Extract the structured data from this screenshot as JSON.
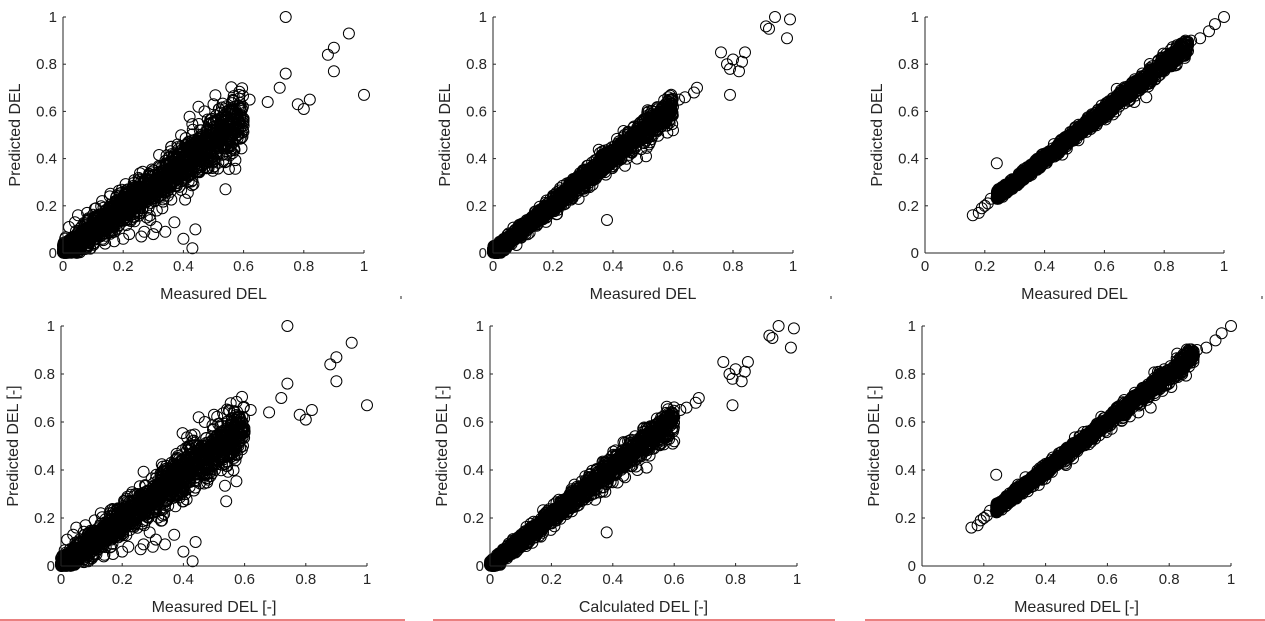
{
  "figure": {
    "background": "#ffffff",
    "marker_color": "#000000",
    "axis_color": "#262626",
    "underline_color": "#d40000"
  },
  "chart_data": [
    {
      "id": "top-left",
      "type": "scatter",
      "marker": "circle",
      "xlabel": "Measured DEL",
      "ylabel": "Predicted DEL",
      "xlim": [
        0,
        1
      ],
      "ylim": [
        0,
        1
      ],
      "xticks": [
        0,
        0.2,
        0.4,
        0.6,
        0.8,
        1
      ],
      "yticks": [
        0,
        0.2,
        0.4,
        0.6,
        0.8,
        1
      ],
      "xtick_labels": [
        "0",
        "0.2",
        "0.4",
        "0.6",
        "0.8",
        "1"
      ],
      "ytick_labels": [
        "0",
        "0.2",
        "0.4",
        "0.6",
        "0.8",
        "1"
      ],
      "grid": false,
      "legend": "none",
      "cloud": {
        "x_range": [
          0,
          0.6
        ],
        "slope": 0.95,
        "spread": 0.05,
        "approx_points": 1800
      },
      "points": [
        [
          0.74,
          1.0
        ],
        [
          0.95,
          0.93
        ],
        [
          0.9,
          0.87
        ],
        [
          0.88,
          0.84
        ],
        [
          0.9,
          0.77
        ],
        [
          1.0,
          0.67
        ],
        [
          0.74,
          0.76
        ],
        [
          0.82,
          0.65
        ],
        [
          0.8,
          0.61
        ],
        [
          0.78,
          0.63
        ],
        [
          0.72,
          0.7
        ],
        [
          0.68,
          0.64
        ],
        [
          0.62,
          0.65
        ],
        [
          0.54,
          0.27
        ],
        [
          0.56,
          0.6
        ],
        [
          0.6,
          0.56
        ],
        [
          0.52,
          0.52
        ],
        [
          0.44,
          0.1
        ],
        [
          0.43,
          0.02
        ],
        [
          0.4,
          0.06
        ],
        [
          0.37,
          0.13
        ],
        [
          0.34,
          0.09
        ],
        [
          0.33,
          0.19
        ],
        [
          0.31,
          0.11
        ],
        [
          0.3,
          0.08
        ],
        [
          0.29,
          0.14
        ],
        [
          0.27,
          0.09
        ],
        [
          0.26,
          0.07
        ],
        [
          0.22,
          0.08
        ],
        [
          0.2,
          0.06
        ],
        [
          0.17,
          0.05
        ],
        [
          0.14,
          0.04
        ],
        [
          0.1,
          0.04
        ],
        [
          0.09,
          0.02
        ],
        [
          0.13,
          0.22
        ],
        [
          0.11,
          0.19
        ],
        [
          0.08,
          0.17
        ],
        [
          0.05,
          0.16
        ],
        [
          0.04,
          0.13
        ],
        [
          0.02,
          0.11
        ],
        [
          0.25,
          0.3
        ],
        [
          0.3,
          0.33
        ],
        [
          0.38,
          0.42
        ],
        [
          0.42,
          0.45
        ],
        [
          0.46,
          0.5
        ],
        [
          0.48,
          0.36
        ],
        [
          0.5,
          0.43
        ],
        [
          0.58,
          0.5
        ],
        [
          0.45,
          0.62
        ],
        [
          0.47,
          0.6
        ],
        [
          0.5,
          0.63
        ]
      ]
    },
    {
      "id": "top-middle",
      "type": "scatter",
      "marker": "circle",
      "xlabel": "Measured DEL",
      "ylabel": "Predicted DEL",
      "xlim": [
        0,
        1
      ],
      "ylim": [
        0,
        1
      ],
      "xticks": [
        0,
        0.2,
        0.4,
        0.6,
        0.8,
        1
      ],
      "yticks": [
        0,
        0.2,
        0.4,
        0.6,
        0.8,
        1
      ],
      "xtick_labels": [
        "0",
        "0.2",
        "0.4",
        "0.6",
        "0.8",
        "1"
      ],
      "ytick_labels": [
        "0",
        "0.2",
        "0.4",
        "0.6",
        "0.8",
        "1"
      ],
      "grid": false,
      "legend": "none",
      "cloud": {
        "x_range": [
          0,
          0.6
        ],
        "slope": 1.03,
        "spread": 0.025,
        "approx_points": 1600
      },
      "points": [
        [
          0.94,
          1.0
        ],
        [
          0.99,
          0.99
        ],
        [
          0.91,
          0.96
        ],
        [
          0.92,
          0.95
        ],
        [
          0.98,
          0.91
        ],
        [
          0.76,
          0.85
        ],
        [
          0.84,
          0.85
        ],
        [
          0.8,
          0.82
        ],
        [
          0.78,
          0.8
        ],
        [
          0.83,
          0.81
        ],
        [
          0.79,
          0.78
        ],
        [
          0.82,
          0.77
        ],
        [
          0.79,
          0.67
        ],
        [
          0.68,
          0.7
        ],
        [
          0.67,
          0.68
        ],
        [
          0.64,
          0.66
        ],
        [
          0.62,
          0.65
        ],
        [
          0.6,
          0.62
        ],
        [
          0.38,
          0.14
        ],
        [
          0.52,
          0.46
        ],
        [
          0.51,
          0.41
        ],
        [
          0.48,
          0.4
        ],
        [
          0.44,
          0.37
        ],
        [
          0.6,
          0.52
        ],
        [
          0.58,
          0.54
        ]
      ]
    },
    {
      "id": "top-right",
      "type": "scatter",
      "marker": "circle",
      "xlabel": "Measured DEL",
      "ylabel": "Predicted DEL",
      "xlim": [
        0,
        1
      ],
      "ylim": [
        0,
        1
      ],
      "xticks": [
        0,
        0.2,
        0.4,
        0.6,
        0.8,
        1
      ],
      "yticks": [
        0,
        0.2,
        0.4,
        0.6,
        0.8,
        1
      ],
      "xtick_labels": [
        "0",
        "0.2",
        "0.4",
        "0.6",
        "0.8",
        "1"
      ],
      "ytick_labels": [
        "0",
        "0.2",
        "0.4",
        "0.6",
        "0.8",
        "1"
      ],
      "grid": false,
      "legend": "none",
      "cloud": {
        "x_range": [
          0.24,
          0.88
        ],
        "slope": 1.0,
        "spread": 0.012,
        "approx_points": 1500
      },
      "points": [
        [
          1.0,
          1.0
        ],
        [
          0.97,
          0.97
        ],
        [
          0.95,
          0.94
        ],
        [
          0.92,
          0.91
        ],
        [
          0.89,
          0.9
        ],
        [
          0.88,
          0.88
        ],
        [
          0.85,
          0.85
        ],
        [
          0.84,
          0.82
        ],
        [
          0.81,
          0.79
        ],
        [
          0.78,
          0.75
        ],
        [
          0.16,
          0.16
        ],
        [
          0.18,
          0.17
        ],
        [
          0.19,
          0.19
        ],
        [
          0.2,
          0.2
        ],
        [
          0.21,
          0.21
        ],
        [
          0.24,
          0.38
        ],
        [
          0.22,
          0.23
        ],
        [
          0.74,
          0.66
        ],
        [
          0.7,
          0.64
        ]
      ]
    },
    {
      "id": "bottom-left",
      "type": "scatter",
      "marker": "circle",
      "xlabel": "Measured DEL [-]",
      "ylabel": "Predicted DEL [-]",
      "xlim": [
        0,
        1
      ],
      "ylim": [
        0,
        1
      ],
      "xticks": [
        0,
        0.2,
        0.4,
        0.6,
        0.8,
        1
      ],
      "yticks": [
        0,
        0.2,
        0.4,
        0.6,
        0.8,
        1
      ],
      "xtick_labels": [
        "0",
        "0.2",
        "0.4",
        "0.6",
        "0.8",
        "1"
      ],
      "ytick_labels": [
        "0",
        "0.2",
        "0.4",
        "0.6",
        "0.8",
        "1"
      ],
      "grid": false,
      "legend": "none",
      "cloud": {
        "x_range": [
          0,
          0.6
        ],
        "slope": 0.95,
        "spread": 0.05,
        "approx_points": 1800
      },
      "points": [
        [
          0.74,
          1.0
        ],
        [
          0.95,
          0.93
        ],
        [
          0.9,
          0.87
        ],
        [
          0.88,
          0.84
        ],
        [
          0.9,
          0.77
        ],
        [
          1.0,
          0.67
        ],
        [
          0.74,
          0.76
        ],
        [
          0.82,
          0.65
        ],
        [
          0.8,
          0.61
        ],
        [
          0.78,
          0.63
        ],
        [
          0.72,
          0.7
        ],
        [
          0.68,
          0.64
        ],
        [
          0.62,
          0.65
        ],
        [
          0.54,
          0.27
        ],
        [
          0.56,
          0.6
        ],
        [
          0.6,
          0.56
        ],
        [
          0.52,
          0.52
        ],
        [
          0.44,
          0.1
        ],
        [
          0.43,
          0.02
        ],
        [
          0.4,
          0.06
        ],
        [
          0.37,
          0.13
        ],
        [
          0.34,
          0.09
        ],
        [
          0.33,
          0.19
        ],
        [
          0.31,
          0.11
        ],
        [
          0.3,
          0.08
        ],
        [
          0.29,
          0.14
        ],
        [
          0.27,
          0.09
        ],
        [
          0.26,
          0.07
        ],
        [
          0.22,
          0.08
        ],
        [
          0.2,
          0.06
        ],
        [
          0.17,
          0.05
        ],
        [
          0.14,
          0.04
        ],
        [
          0.1,
          0.04
        ],
        [
          0.09,
          0.02
        ],
        [
          0.13,
          0.22
        ],
        [
          0.11,
          0.19
        ],
        [
          0.08,
          0.17
        ],
        [
          0.05,
          0.16
        ],
        [
          0.04,
          0.13
        ],
        [
          0.02,
          0.11
        ],
        [
          0.25,
          0.3
        ],
        [
          0.3,
          0.33
        ],
        [
          0.38,
          0.42
        ],
        [
          0.42,
          0.45
        ],
        [
          0.46,
          0.5
        ],
        [
          0.48,
          0.36
        ],
        [
          0.5,
          0.43
        ],
        [
          0.58,
          0.5
        ],
        [
          0.45,
          0.62
        ],
        [
          0.47,
          0.6
        ],
        [
          0.5,
          0.63
        ]
      ]
    },
    {
      "id": "bottom-middle",
      "type": "scatter",
      "marker": "circle",
      "xlabel": "Calculated DEL [-]",
      "ylabel": "Predicted DEL [-]",
      "xlim": [
        0,
        1
      ],
      "ylim": [
        0,
        1
      ],
      "xticks": [
        0,
        0.2,
        0.4,
        0.6,
        0.8,
        1
      ],
      "yticks": [
        0,
        0.2,
        0.4,
        0.6,
        0.8,
        1
      ],
      "xtick_labels": [
        "0",
        "0.2",
        "0.4",
        "0.6",
        "0.8",
        "1"
      ],
      "ytick_labels": [
        "0",
        "0.2",
        "0.4",
        "0.6",
        "0.8",
        "1"
      ],
      "grid": false,
      "legend": "none",
      "cloud": {
        "x_range": [
          0,
          0.6
        ],
        "slope": 1.03,
        "spread": 0.025,
        "approx_points": 1600
      },
      "points": [
        [
          0.94,
          1.0
        ],
        [
          0.99,
          0.99
        ],
        [
          0.91,
          0.96
        ],
        [
          0.92,
          0.95
        ],
        [
          0.98,
          0.91
        ],
        [
          0.76,
          0.85
        ],
        [
          0.84,
          0.85
        ],
        [
          0.8,
          0.82
        ],
        [
          0.78,
          0.8
        ],
        [
          0.83,
          0.81
        ],
        [
          0.79,
          0.78
        ],
        [
          0.82,
          0.77
        ],
        [
          0.79,
          0.67
        ],
        [
          0.68,
          0.7
        ],
        [
          0.67,
          0.68
        ],
        [
          0.64,
          0.66
        ],
        [
          0.62,
          0.65
        ],
        [
          0.6,
          0.62
        ],
        [
          0.38,
          0.14
        ],
        [
          0.52,
          0.46
        ],
        [
          0.51,
          0.41
        ],
        [
          0.48,
          0.4
        ],
        [
          0.44,
          0.37
        ],
        [
          0.6,
          0.52
        ],
        [
          0.58,
          0.54
        ]
      ]
    },
    {
      "id": "bottom-right",
      "type": "scatter",
      "marker": "circle",
      "xlabel": "Measured DEL [-]",
      "ylabel": "Predicted DEL [-]",
      "xlim": [
        0,
        1
      ],
      "ylim": [
        0,
        1
      ],
      "xticks": [
        0,
        0.2,
        0.4,
        0.6,
        0.8,
        1
      ],
      "yticks": [
        0,
        0.2,
        0.4,
        0.6,
        0.8,
        1
      ],
      "xtick_labels": [
        "0",
        "0.2",
        "0.4",
        "0.6",
        "0.8",
        "1"
      ],
      "ytick_labels": [
        "0",
        "0.2",
        "0.4",
        "0.6",
        "0.8",
        "1"
      ],
      "grid": false,
      "legend": "none",
      "cloud": {
        "x_range": [
          0.24,
          0.88
        ],
        "slope": 1.0,
        "spread": 0.012,
        "approx_points": 1500
      },
      "points": [
        [
          1.0,
          1.0
        ],
        [
          0.97,
          0.97
        ],
        [
          0.95,
          0.94
        ],
        [
          0.92,
          0.91
        ],
        [
          0.89,
          0.9
        ],
        [
          0.88,
          0.88
        ],
        [
          0.85,
          0.85
        ],
        [
          0.84,
          0.82
        ],
        [
          0.81,
          0.79
        ],
        [
          0.78,
          0.75
        ],
        [
          0.16,
          0.16
        ],
        [
          0.18,
          0.17
        ],
        [
          0.19,
          0.19
        ],
        [
          0.2,
          0.2
        ],
        [
          0.21,
          0.21
        ],
        [
          0.24,
          0.38
        ],
        [
          0.22,
          0.23
        ],
        [
          0.74,
          0.66
        ],
        [
          0.7,
          0.64
        ]
      ]
    }
  ]
}
